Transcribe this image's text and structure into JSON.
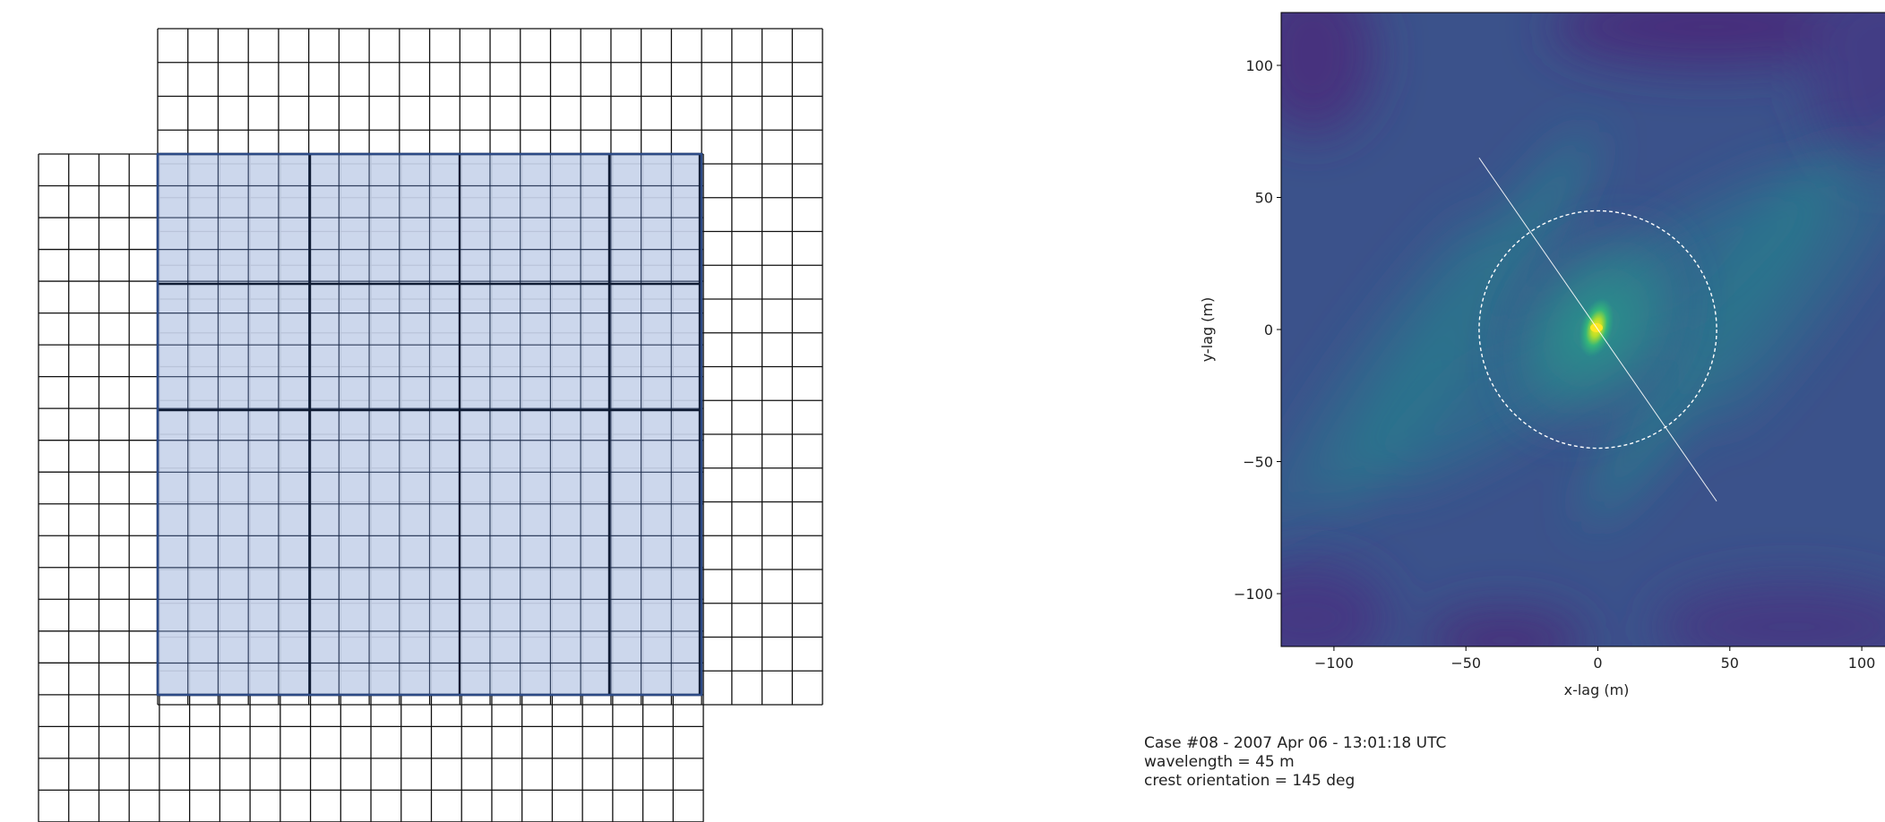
{
  "grid_panel": {
    "back_grid": {
      "columns": 22,
      "rows": 20
    },
    "front_grid": {
      "columns": 22,
      "rows": 21
    },
    "shaded_grid": {
      "columns": 18,
      "rows": 17,
      "block_columns": 3,
      "block_rows": 3
    },
    "colors": {
      "fill": "#c8d4ea",
      "line": "#111111",
      "block_line": "#1a2a4a"
    }
  },
  "chart_data": {
    "type": "heatmap",
    "colormap": "viridis",
    "xlabel": "x-lag (m)",
    "ylabel": "y-lag (m)",
    "xlim": [
      -120,
      120
    ],
    "ylim": [
      -120,
      120
    ],
    "x_ticks": [
      -100,
      -50,
      0,
      50,
      100
    ],
    "x_tick_labels": [
      "−100",
      "−50",
      "0",
      "50",
      "100"
    ],
    "y_ticks": [
      100,
      50,
      0,
      -50,
      -100
    ],
    "y_tick_labels": [
      "100",
      "50",
      "0",
      "−50",
      "−100"
    ],
    "overlays": {
      "circle": {
        "center": [
          0,
          0
        ],
        "radius": 45,
        "style": "dashed",
        "color": "#ffffff"
      },
      "crest_line": {
        "from": [
          -45,
          65
        ],
        "to": [
          45,
          -65
        ],
        "color": "#ffffff"
      }
    },
    "peak": [
      0,
      0
    ]
  },
  "caption": {
    "line1": "Case #08 - 2007 Apr 06 - 13:01:18 UTC",
    "line2": "wavelength = 45 m",
    "line3": "crest orientation = 145 deg"
  }
}
